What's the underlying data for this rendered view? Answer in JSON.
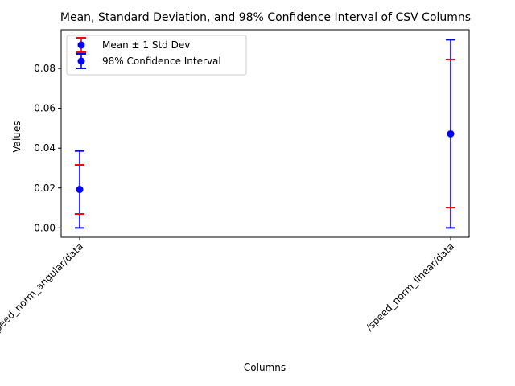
{
  "chart_data": {
    "type": "scatter",
    "title": "Mean, Standard Deviation, and 98% Confidence Interval of CSV Columns",
    "xlabel": "Columns",
    "ylabel": "Values",
    "categories": [
      "/speed_norm_angular/data",
      "/speed_norm_linear/data"
    ],
    "ylim": [
      -0.0047,
      0.0994
    ],
    "yticks": [
      "0.00",
      "0.02",
      "0.04",
      "0.06",
      "0.08"
    ],
    "ytick_values": [
      0.0,
      0.02,
      0.04,
      0.06,
      0.08
    ],
    "grid": false,
    "legend_position": "upper-left",
    "mean": [
      0.0193,
      0.0472
    ],
    "std_interval": [
      [
        0.007,
        0.0316
      ],
      [
        0.0102,
        0.0845
      ]
    ],
    "ci98_interval": [
      [
        0.0,
        0.0386
      ],
      [
        0.0,
        0.0944
      ]
    ],
    "series": [
      {
        "name": "Mean ± 1 Std Dev",
        "color": "#ff0000"
      },
      {
        "name": "98% Confidence Interval",
        "color": "#0000ff"
      }
    ],
    "marker_color": "#0000ff"
  }
}
